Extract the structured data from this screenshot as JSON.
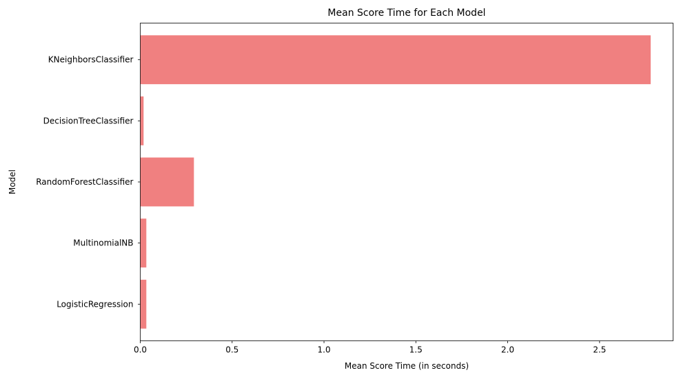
{
  "chart_data": {
    "type": "bar",
    "orientation": "horizontal",
    "title": "Mean Score Time for Each Model",
    "xlabel": "Mean Score Time (in seconds)",
    "ylabel": "Model",
    "categories": [
      "LogisticRegression",
      "MultinomialNB",
      "RandomForestClassifier",
      "DecisionTreeClassifier",
      "KNeighborsClassifier"
    ],
    "values": [
      0.033,
      0.033,
      0.292,
      0.018,
      2.778
    ],
    "xlim": [
      0,
      2.9
    ],
    "xticks": [
      0.0,
      0.5,
      1.0,
      1.5,
      2.0,
      2.5
    ],
    "xtick_labels": [
      "0.0",
      "0.5",
      "1.0",
      "1.5",
      "2.0",
      "2.5"
    ],
    "bar_color": "#f08080",
    "grid": false,
    "legend": false
  }
}
